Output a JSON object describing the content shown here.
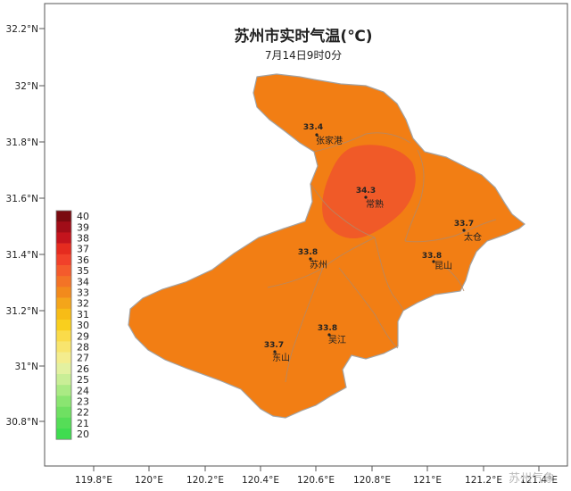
{
  "title": "苏州市实时气温(℃)",
  "subtitle": "7月14日9时0分",
  "lat_ticks": [
    "32.2°N",
    "32°N",
    "31.8°N",
    "31.6°N",
    "31.4°N",
    "31.2°N",
    "31°N",
    "30.8°N"
  ],
  "lon_ticks": [
    "119.8°E",
    "120°E",
    "120.2°E",
    "120.4°E",
    "120.6°E",
    "120.8°E",
    "121°E",
    "121.2°E",
    "121.4°E"
  ],
  "stations": [
    {
      "name": "张家港",
      "value": "33.4"
    },
    {
      "name": "常熟",
      "value": "34.3"
    },
    {
      "name": "太仓",
      "value": "33.7"
    },
    {
      "name": "苏州",
      "value": "33.8"
    },
    {
      "name": "昆山",
      "value": "33.8"
    },
    {
      "name": "吴江",
      "value": "33.8"
    },
    {
      "name": "东山",
      "value": "33.7"
    }
  ],
  "legend": {
    "labels": [
      "40",
      "39",
      "38",
      "37",
      "36",
      "35",
      "34",
      "33",
      "32",
      "31",
      "30",
      "29",
      "28",
      "27",
      "26",
      "25",
      "24",
      "23",
      "22",
      "21",
      "20"
    ],
    "colors": [
      "#7a0a10",
      "#a10d18",
      "#c4141d",
      "#e52b1f",
      "#f1412a",
      "#f45b2c",
      "#f37326",
      "#f28a1c",
      "#f4a51a",
      "#f7bc16",
      "#f9cf1e",
      "#fadb4a",
      "#f8e56e",
      "#f4ed8e",
      "#e3f1a0",
      "#c9ee96",
      "#aaea84",
      "#8ae571",
      "#6fe062",
      "#55dd57",
      "#3fdc50"
    ]
  },
  "watermark": "苏州气象",
  "colors": {
    "fill_main": "#f27e14",
    "fill_hot": "#f05a28",
    "border": "#a3a3a3"
  }
}
